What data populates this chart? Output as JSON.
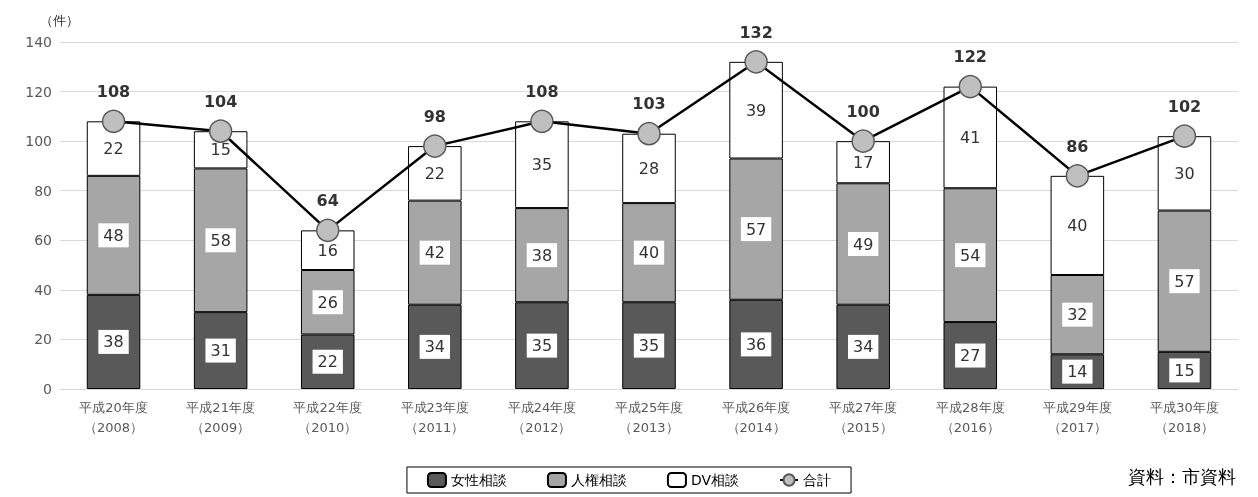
{
  "chart_data": {
    "type": "bar",
    "stacked": true,
    "ylabel": "（件）",
    "categories": [
      "平成20年度（2008）",
      "平成21年度（2009）",
      "平成22年度（2010）",
      "平成23年度（2011）",
      "平成24年度（2012）",
      "平成25年度（2013）",
      "平成26年度（2014）",
      "平成27年度（2015）",
      "平成28年度（2016）",
      "平成29年度（2017）",
      "平成30年度（2018）"
    ],
    "series": [
      {
        "name": "女性相談",
        "color": "#595959",
        "values": [
          38,
          31,
          22,
          34,
          35,
          35,
          36,
          34,
          27,
          14,
          15
        ]
      },
      {
        "name": "人権相談",
        "color": "#a6a6a6",
        "values": [
          48,
          58,
          26,
          42,
          38,
          40,
          57,
          49,
          54,
          32,
          57
        ]
      },
      {
        "name": "DV相談",
        "color": "#ffffff",
        "values": [
          22,
          15,
          16,
          22,
          35,
          28,
          39,
          17,
          41,
          40,
          30
        ]
      },
      {
        "name": "合計",
        "type": "line",
        "color": "#000000",
        "marker": "circle",
        "values": [
          108,
          104,
          64,
          98,
          108,
          103,
          132,
          100,
          122,
          86,
          102
        ]
      }
    ],
    "ylim": [
      0,
      140
    ],
    "yticks": [
      0,
      20,
      40,
      60,
      80,
      100,
      120,
      140
    ],
    "grid": "y",
    "legend": "bottom",
    "data_labels": true,
    "annotations": [
      "資料：市資料"
    ]
  }
}
